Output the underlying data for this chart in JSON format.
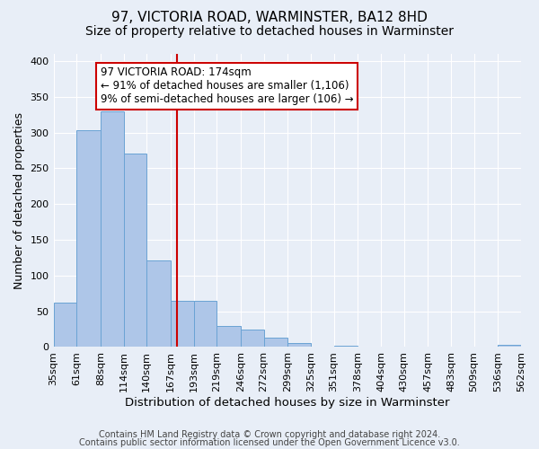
{
  "title": "97, VICTORIA ROAD, WARMINSTER, BA12 8HD",
  "subtitle": "Size of property relative to detached houses in Warminster",
  "xlabel": "Distribution of detached houses by size in Warminster",
  "ylabel": "Number of detached properties",
  "bar_edges": [
    35,
    61,
    88,
    114,
    140,
    167,
    193,
    219,
    246,
    272,
    299,
    325,
    351,
    378,
    404,
    430,
    457,
    483,
    509,
    536,
    562
  ],
  "bar_heights": [
    62,
    303,
    330,
    270,
    121,
    65,
    65,
    29,
    25,
    13,
    5,
    0,
    2,
    0,
    0,
    0,
    0,
    0,
    0,
    3
  ],
  "bar_color": "#aec6e8",
  "bar_edgecolor": "#6aa3d4",
  "property_size": 174,
  "vline_color": "#cc0000",
  "annotation_line1": "97 VICTORIA ROAD: 174sqm",
  "annotation_line2": "← 91% of detached houses are smaller (1,106)",
  "annotation_line3": "9% of semi-detached houses are larger (106) →",
  "annotation_box_facecolor": "#ffffff",
  "annotation_box_edgecolor": "#cc0000",
  "ylim": [
    0,
    410
  ],
  "yticks": [
    0,
    50,
    100,
    150,
    200,
    250,
    300,
    350,
    400
  ],
  "background_color": "#e8eef7",
  "plot_background_color": "#e8eef7",
  "footer_line1": "Contains HM Land Registry data © Crown copyright and database right 2024.",
  "footer_line2": "Contains public sector information licensed under the Open Government Licence v3.0.",
  "title_fontsize": 11,
  "subtitle_fontsize": 10,
  "xlabel_fontsize": 9.5,
  "ylabel_fontsize": 9,
  "tick_fontsize": 8,
  "annotation_fontsize": 8.5,
  "footer_fontsize": 7
}
